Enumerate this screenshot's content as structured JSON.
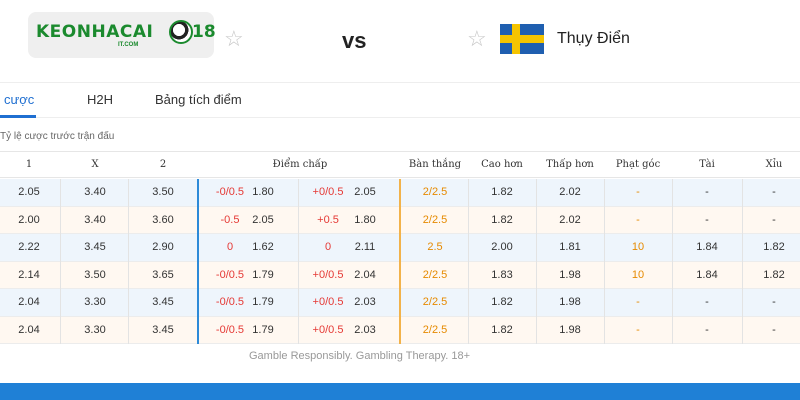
{
  "header": {
    "logo_text_main": "KEONHACAI",
    "logo_text_num": "18",
    "logo_sub": "IT.COM",
    "vs": "vs",
    "away_team": "Thụy Điển",
    "colors": {
      "brand_green": "#1b8a2e",
      "flag_blue": "#1f5fb0",
      "flag_yellow": "#f5c400"
    }
  },
  "tabs": [
    {
      "label": "cược",
      "active": true
    },
    {
      "label": "H2H",
      "active": false
    },
    {
      "label": "Bảng tích điểm",
      "active": false
    }
  ],
  "section_title": "Tỷ lệ cược trước trận đấu",
  "table": {
    "headers": [
      "1",
      "X",
      "2",
      "Điểm chấp",
      "Bàn thắng",
      "Cao hơn",
      "Thấp hơn",
      "Phạt góc",
      "Tài",
      "Xỉu"
    ],
    "rows": [
      {
        "c1": "2.05",
        "cx": "3.40",
        "c2": "3.50",
        "h1": "-0/0.5",
        "h1v": "1.80",
        "h2": "+0/0.5",
        "h2v": "2.05",
        "goal": "2/2.5",
        "over": "1.82",
        "under": "2.02",
        "corner": "-",
        "tai": "-",
        "xiu": "-"
      },
      {
        "c1": "2.00",
        "cx": "3.40",
        "c2": "3.60",
        "h1": "-0.5",
        "h1v": "2.05",
        "h2": "+0.5",
        "h2v": "1.80",
        "goal": "2/2.5",
        "over": "1.82",
        "under": "2.02",
        "corner": "-",
        "tai": "-",
        "xiu": "-"
      },
      {
        "c1": "2.22",
        "cx": "3.45",
        "c2": "2.90",
        "h1": "0",
        "h1v": "1.62",
        "h2": "0",
        "h2v": "2.11",
        "goal": "2.5",
        "over": "2.00",
        "under": "1.81",
        "corner": "10",
        "tai": "1.84",
        "xiu": "1.82"
      },
      {
        "c1": "2.14",
        "cx": "3.50",
        "c2": "3.65",
        "h1": "-0/0.5",
        "h1v": "1.79",
        "h2": "+0/0.5",
        "h2v": "2.04",
        "goal": "2/2.5",
        "over": "1.83",
        "under": "1.98",
        "corner": "10",
        "tai": "1.84",
        "xiu": "1.82"
      },
      {
        "c1": "2.04",
        "cx": "3.30",
        "c2": "3.45",
        "h1": "-0/0.5",
        "h1v": "1.79",
        "h2": "+0/0.5",
        "h2v": "2.03",
        "goal": "2/2.5",
        "over": "1.82",
        "under": "1.98",
        "corner": "-",
        "tai": "-",
        "xiu": "-"
      },
      {
        "c1": "2.04",
        "cx": "3.30",
        "c2": "3.45",
        "h1": "-0/0.5",
        "h1v": "1.79",
        "h2": "+0/0.5",
        "h2v": "2.03",
        "goal": "2/2.5",
        "over": "1.82",
        "under": "1.98",
        "corner": "-",
        "tai": "-",
        "xiu": "-"
      }
    ]
  },
  "footer_note": "Gamble Responsibly. Gambling Therapy. 18+"
}
